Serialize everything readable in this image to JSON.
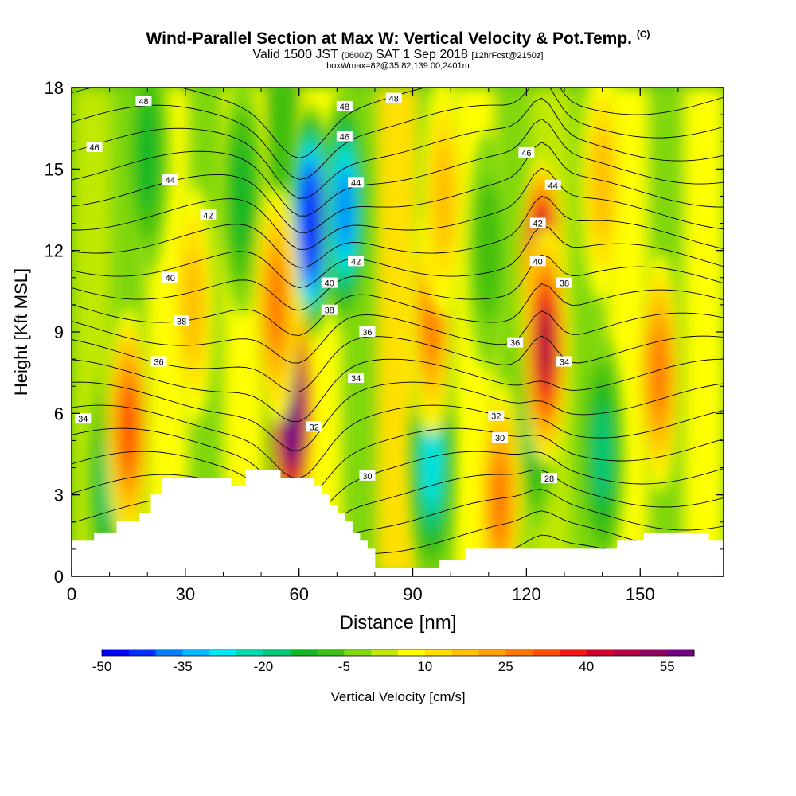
{
  "header": {
    "title_main": "Wind-Parallel Section at Max W: Vertical Velocity & Pot.Temp.",
    "title_copyright": "(C)",
    "valid_prefix": "Valid 1500 JST",
    "valid_utc": "(0600Z)",
    "valid_date": "SAT 1 Sep 2018",
    "forecast": "[12hrFcst@2150z]",
    "box_info": "boxWmax=82@35.82,139.00,2401m"
  },
  "chart_data": {
    "type": "heatmap",
    "xlabel": "Distance [nm]",
    "ylabel": "Height [Kft MSL]",
    "xlim": [
      0,
      172
    ],
    "ylim": [
      0,
      18
    ],
    "x_ticks": [
      "0",
      "30",
      "60",
      "90",
      "120",
      "150"
    ],
    "y_ticks": [
      "0",
      "3",
      "6",
      "9",
      "12",
      "15",
      "18"
    ],
    "colorbar": {
      "label": "Vertical Velocity [cm/s]",
      "tick_labels": [
        "-50",
        "-35",
        "-20",
        "-5",
        "10",
        "25",
        "40",
        "55"
      ],
      "colors": [
        "#0000ff",
        "#0030ff",
        "#0080ff",
        "#00b8ff",
        "#00e8f0",
        "#00d8b0",
        "#00c878",
        "#10b828",
        "#40c010",
        "#80d810",
        "#c0e800",
        "#ffff00",
        "#ffe000",
        "#ffc000",
        "#ffa000",
        "#ff7800",
        "#ff5000",
        "#f01818",
        "#d00030",
        "#b00040",
        "#900060",
        "#700080"
      ]
    },
    "terrain": [
      [
        0,
        1.3
      ],
      [
        6,
        1.3
      ],
      [
        6,
        1.6
      ],
      [
        12,
        1.6
      ],
      [
        12,
        2.0
      ],
      [
        18,
        2.0
      ],
      [
        18,
        2.3
      ],
      [
        21,
        2.3
      ],
      [
        21,
        3.0
      ],
      [
        24,
        3.0
      ],
      [
        24,
        3.6
      ],
      [
        42,
        3.6
      ],
      [
        42,
        3.3
      ],
      [
        46,
        3.3
      ],
      [
        46,
        3.9
      ],
      [
        55,
        3.9
      ],
      [
        55,
        3.6
      ],
      [
        64,
        3.6
      ],
      [
        64,
        3.3
      ],
      [
        66,
        3.3
      ],
      [
        66,
        3.0
      ],
      [
        68,
        3.0
      ],
      [
        68,
        2.6
      ],
      [
        70,
        2.6
      ],
      [
        70,
        2.3
      ],
      [
        72,
        2.3
      ],
      [
        72,
        2.0
      ],
      [
        74,
        2.0
      ],
      [
        74,
        1.6
      ],
      [
        76,
        1.6
      ],
      [
        76,
        1.3
      ],
      [
        78,
        1.3
      ],
      [
        78,
        1.0
      ],
      [
        80,
        1.0
      ],
      [
        80,
        0.3
      ],
      [
        97,
        0.3
      ],
      [
        97,
        0.6
      ],
      [
        104,
        0.6
      ],
      [
        104,
        1.0
      ],
      [
        144,
        1.0
      ],
      [
        144,
        1.3
      ],
      [
        151,
        1.3
      ],
      [
        151,
        1.6
      ],
      [
        168,
        1.6
      ],
      [
        168,
        1.3
      ],
      [
        172,
        1.3
      ],
      [
        172,
        0
      ],
      [
        0,
        0
      ]
    ],
    "updrafts": [
      {
        "x": 58,
        "y": 6.2,
        "w": 70
      },
      {
        "x": 124,
        "y": 11.0,
        "w": 60
      },
      {
        "x": 125,
        "y": 8.5,
        "w": 40
      },
      {
        "x": 95,
        "y": 9.6,
        "w": 22
      },
      {
        "x": 54,
        "y": 10.0,
        "w": 20
      },
      {
        "x": 113,
        "y": 2.8,
        "w": 22
      },
      {
        "x": 15,
        "y": 5.5,
        "w": 25
      },
      {
        "x": 155,
        "y": 7.5,
        "w": 22
      },
      {
        "x": 140,
        "y": 14.5,
        "w": 14
      },
      {
        "x": 32,
        "y": 10.0,
        "w": 12
      },
      {
        "x": 98,
        "y": 14.0,
        "w": 14
      }
    ],
    "downdrafts": [
      {
        "x": 63,
        "y": 13.0,
        "w": -55
      },
      {
        "x": 72,
        "y": 13.5,
        "w": -38
      },
      {
        "x": 95,
        "y": 4.2,
        "w": -25
      },
      {
        "x": 10,
        "y": 3.5,
        "w": -15
      },
      {
        "x": 140,
        "y": 4.5,
        "w": -15
      },
      {
        "x": 122,
        "y": 6.0,
        "w": -18
      },
      {
        "x": 20,
        "y": 15.5,
        "w": -10
      },
      {
        "x": 45,
        "y": 14.0,
        "w": -10
      },
      {
        "x": 110,
        "y": 12.0,
        "w": -8
      }
    ],
    "isentrope_labels": [
      {
        "text": "48",
        "x": 19,
        "y": 17.5
      },
      {
        "text": "48",
        "x": 72,
        "y": 17.3
      },
      {
        "text": "48",
        "x": 85,
        "y": 17.6
      },
      {
        "text": "46",
        "x": 6,
        "y": 15.8
      },
      {
        "text": "46",
        "x": 72,
        "y": 16.2
      },
      {
        "text": "46",
        "x": 120,
        "y": 15.6
      },
      {
        "text": "44",
        "x": 26,
        "y": 14.6
      },
      {
        "text": "44",
        "x": 75,
        "y": 14.5
      },
      {
        "text": "44",
        "x": 127,
        "y": 14.4
      },
      {
        "text": "42",
        "x": 36,
        "y": 13.3
      },
      {
        "text": "42",
        "x": 75,
        "y": 11.6
      },
      {
        "text": "42",
        "x": 123,
        "y": 13.0
      },
      {
        "text": "40",
        "x": 26,
        "y": 11.0
      },
      {
        "text": "40",
        "x": 68,
        "y": 10.8
      },
      {
        "text": "40",
        "x": 123,
        "y": 11.6
      },
      {
        "text": "38",
        "x": 29,
        "y": 9.4
      },
      {
        "text": "38",
        "x": 68,
        "y": 9.8
      },
      {
        "text": "38",
        "x": 130,
        "y": 10.8
      },
      {
        "text": "36",
        "x": 23,
        "y": 7.9
      },
      {
        "text": "36",
        "x": 78,
        "y": 9.0
      },
      {
        "text": "36",
        "x": 117,
        "y": 8.6
      },
      {
        "text": "34",
        "x": 3,
        "y": 5.8
      },
      {
        "text": "34",
        "x": 75,
        "y": 7.3
      },
      {
        "text": "34",
        "x": 130,
        "y": 7.9
      },
      {
        "text": "32",
        "x": 64,
        "y": 5.5
      },
      {
        "text": "32",
        "x": 112,
        "y": 5.9
      },
      {
        "text": "30",
        "x": 78,
        "y": 3.7
      },
      {
        "text": "30",
        "x": 113,
        "y": 5.1
      },
      {
        "text": "28",
        "x": 126,
        "y": 3.6
      }
    ]
  }
}
